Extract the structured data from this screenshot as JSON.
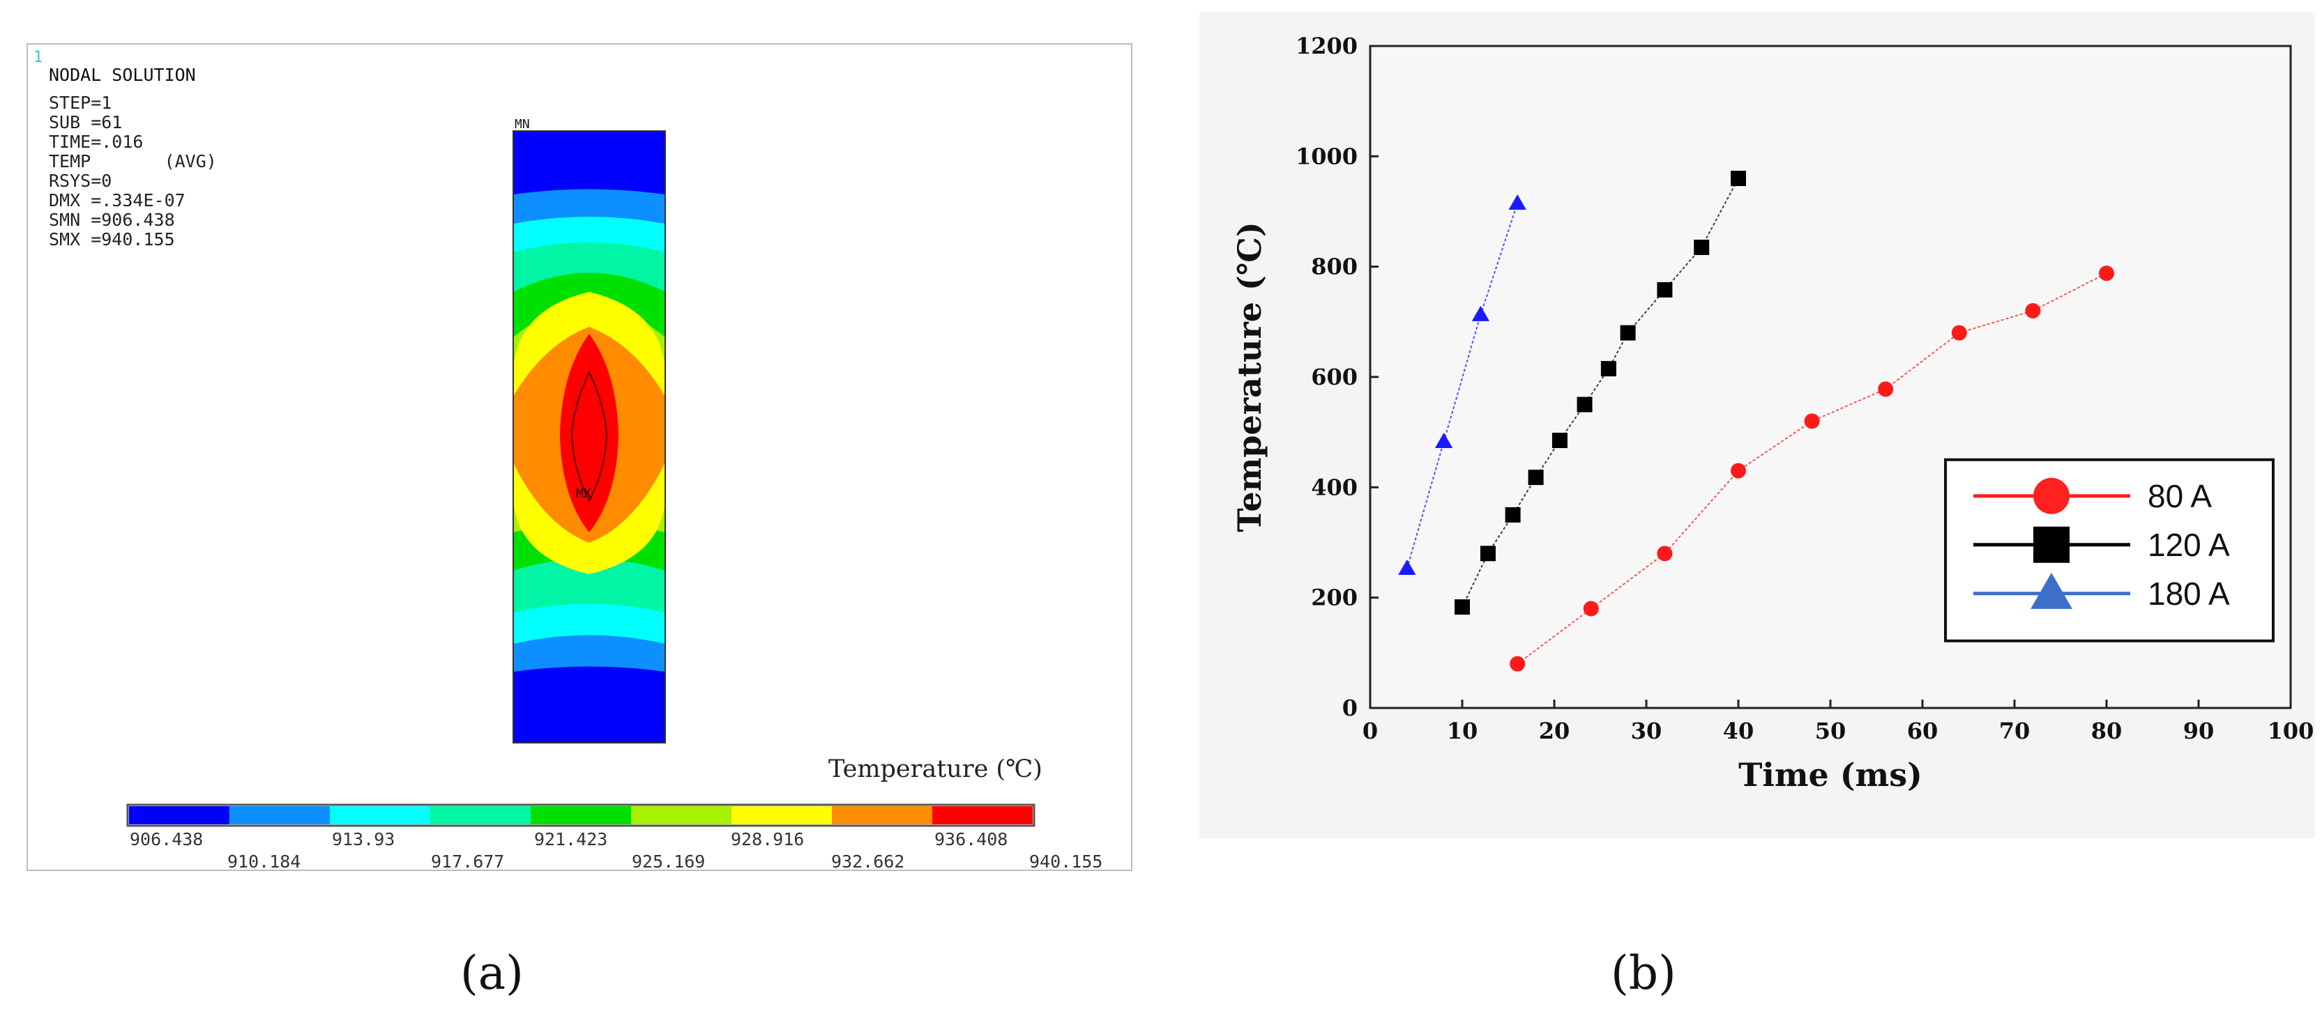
{
  "panel_a": {
    "window_number": "1",
    "title": "NODAL SOLUTION",
    "info_lines": [
      "STEP=1",
      "SUB =61",
      "TIME=.016",
      "TEMP       (AVG)",
      "RSYS=0",
      "DMX =.334E-07",
      "SMN =906.438",
      "SMX =940.155"
    ],
    "mn_label": "MN",
    "mx_label": "MX",
    "colorbar_label": "Temperature (℃)",
    "contour_colors": [
      "#0000ff",
      "#0e8fff",
      "#00ffff",
      "#00f5a5",
      "#00e000",
      "#a6f000",
      "#ffff00",
      "#ff8c00",
      "#ff0000"
    ],
    "colorbar_ticks": [
      "906.438",
      "910.184",
      "913.93",
      "917.677",
      "921.423",
      "925.169",
      "928.916",
      "932.662",
      "936.408",
      "940.155"
    ],
    "caption": "(a)"
  },
  "chart_data": {
    "type": "line",
    "xlabel": "Time (ms)",
    "ylabel": "Temperature (℃)",
    "xlim": [
      0,
      100
    ],
    "ylim": [
      0,
      1200
    ],
    "xticks": [
      0,
      10,
      20,
      30,
      40,
      50,
      60,
      70,
      80,
      90,
      100
    ],
    "yticks": [
      0,
      200,
      400,
      600,
      800,
      1000,
      1200
    ],
    "legend_position": "lower-right",
    "series": [
      {
        "name": "80 A",
        "color": "#ff1a1a",
        "marker": "circle",
        "x": [
          16,
          24,
          32,
          40,
          48,
          56,
          64,
          72,
          80
        ],
        "y": [
          80,
          180,
          280,
          430,
          520,
          578,
          680,
          720,
          788
        ]
      },
      {
        "name": "120 A",
        "color": "#000000",
        "marker": "square",
        "x": [
          10,
          12.8,
          15.5,
          18,
          20.6,
          23.3,
          25.9,
          28,
          32,
          36,
          40
        ],
        "y": [
          183,
          280,
          350,
          418,
          485,
          550,
          615,
          680,
          758,
          835,
          960
        ]
      },
      {
        "name": "180 A",
        "color": "#1a1aff",
        "marker": "triangle",
        "x": [
          4,
          8,
          12,
          16
        ],
        "y": [
          253,
          483,
          713,
          915
        ]
      }
    ],
    "caption": "(b)"
  }
}
